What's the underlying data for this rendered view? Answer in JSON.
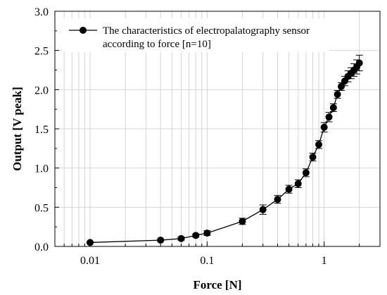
{
  "chart_data": {
    "type": "scatter",
    "xscale": "log",
    "xlim": [
      0.005,
      3
    ],
    "ylim": [
      0,
      3
    ],
    "xlabel": "Force [N]",
    "ylabel": "Output [V peak]",
    "xticks": [
      0.01,
      0.1,
      1
    ],
    "xtick_labels": [
      "0.01",
      "0.1",
      "1"
    ],
    "yticks": [
      0,
      0.5,
      1,
      1.5,
      2,
      2.5,
      3
    ],
    "ytick_labels": [
      "0.0",
      "0.5",
      "1.0",
      "1.5",
      "2.0",
      "2.5",
      "3.0"
    ],
    "grid": true,
    "legend_position": "top-left",
    "series": [
      {
        "name": "The characteristics of electropalatography sensor according to force [n=10]",
        "color": "#000000",
        "marker": "circle",
        "line": true,
        "x": [
          0.01,
          0.04,
          0.06,
          0.08,
          0.1,
          0.2,
          0.3,
          0.4,
          0.5,
          0.6,
          0.7,
          0.8,
          0.9,
          1.0,
          1.1,
          1.2,
          1.3,
          1.4,
          1.5,
          1.6,
          1.7,
          1.8,
          1.9,
          2.0
        ],
        "y": [
          0.05,
          0.08,
          0.1,
          0.14,
          0.17,
          0.32,
          0.47,
          0.6,
          0.73,
          0.8,
          0.94,
          1.14,
          1.3,
          1.52,
          1.65,
          1.77,
          1.94,
          2.04,
          2.11,
          2.17,
          2.21,
          2.25,
          2.29,
          2.34
        ],
        "error": [
          0.01,
          0.01,
          0.02,
          0.02,
          0.03,
          0.04,
          0.06,
          0.05,
          0.05,
          0.05,
          0.05,
          0.05,
          0.05,
          0.06,
          0.06,
          0.05,
          0.05,
          0.05,
          0.06,
          0.07,
          0.07,
          0.08,
          0.09,
          0.1
        ]
      }
    ]
  }
}
